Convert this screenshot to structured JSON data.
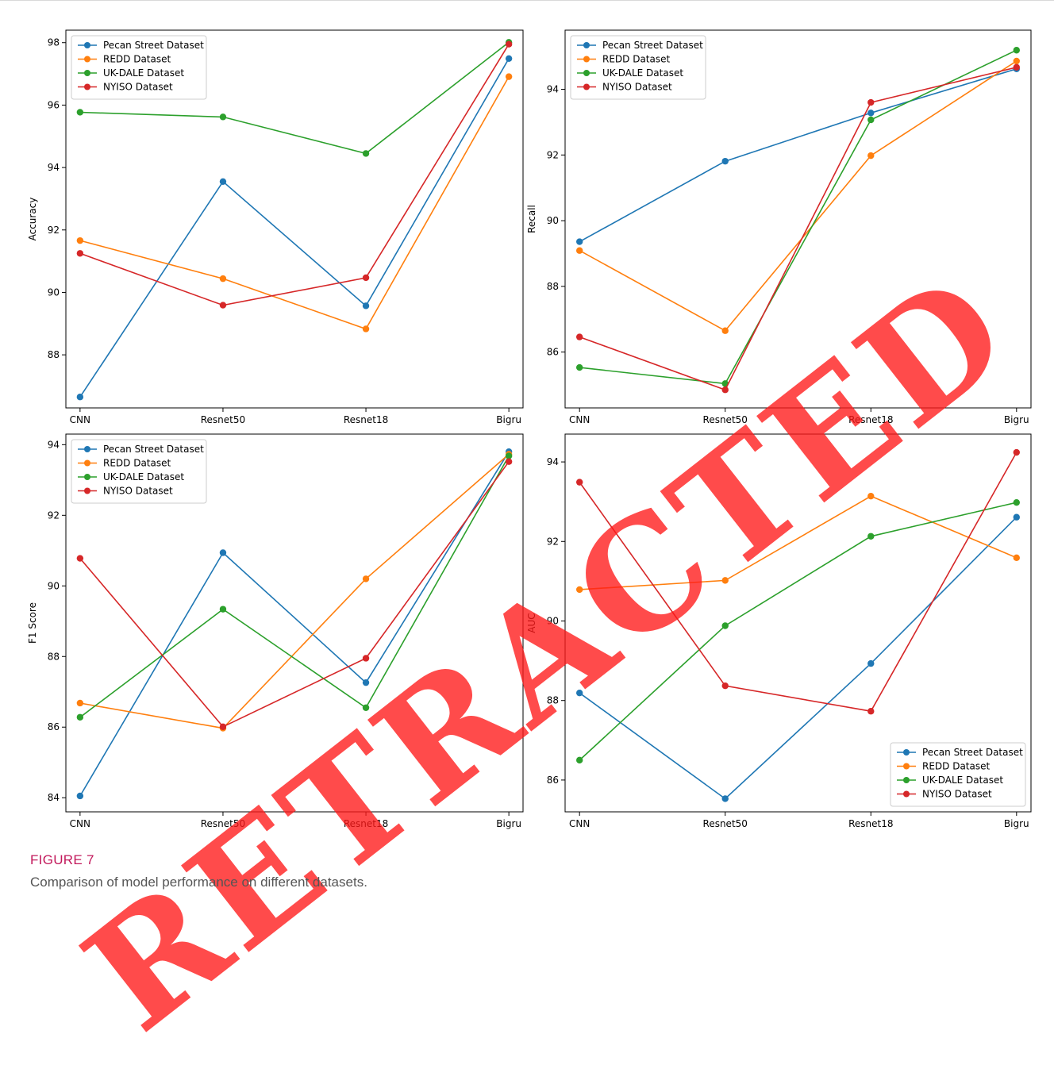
{
  "figure": {
    "label": "FIGURE 7",
    "caption": "Comparison of model performance on different datasets.",
    "watermark": "RETRACTED",
    "watermark_color": "#ff1818"
  },
  "colors": {
    "Pecan Street Dataset": "#1f77b4",
    "REDD Dataset": "#ff7f0e",
    "UK-DALE Dataset": "#2ca02c",
    "NYISO Dataset": "#d62728"
  },
  "chart_data": [
    {
      "type": "line",
      "ylabel": "Accuracy",
      "categories": [
        "CNN",
        "Resnet50",
        "Resnet18",
        "Bigru"
      ],
      "ylim": [
        86.3,
        98.4
      ],
      "yticks": [
        88,
        90,
        92,
        94,
        96,
        98
      ],
      "legend": "top-left",
      "grid": false,
      "series": [
        {
          "name": "Pecan Street Dataset",
          "values": [
            86.65,
            93.55,
            89.57,
            97.49
          ]
        },
        {
          "name": "REDD Dataset",
          "values": [
            91.66,
            90.44,
            88.83,
            96.91
          ]
        },
        {
          "name": "UK-DALE Dataset",
          "values": [
            95.77,
            95.62,
            94.45,
            98.01
          ]
        },
        {
          "name": "NYISO Dataset",
          "values": [
            91.25,
            89.59,
            90.47,
            97.95
          ]
        }
      ]
    },
    {
      "type": "line",
      "ylabel": "Recall",
      "categories": [
        "CNN",
        "Resnet50",
        "Resnet18",
        "Bigru"
      ],
      "ylim": [
        84.3,
        95.8
      ],
      "yticks": [
        86,
        88,
        90,
        92,
        94
      ],
      "legend": "top-left",
      "grid": false,
      "series": [
        {
          "name": "Pecan Street Dataset",
          "values": [
            89.36,
            91.81,
            93.28,
            94.62
          ]
        },
        {
          "name": "REDD Dataset",
          "values": [
            89.09,
            86.65,
            91.98,
            94.86
          ]
        },
        {
          "name": "UK-DALE Dataset",
          "values": [
            85.53,
            85.04,
            93.07,
            95.19
          ]
        },
        {
          "name": "NYISO Dataset",
          "values": [
            86.46,
            84.85,
            93.6,
            94.67
          ]
        }
      ]
    },
    {
      "type": "line",
      "ylabel": "F1 Score",
      "categories": [
        "CNN",
        "Resnet50",
        "Resnet18",
        "Bigru"
      ],
      "ylim": [
        83.6,
        94.3
      ],
      "yticks": [
        84,
        86,
        88,
        90,
        92,
        94
      ],
      "legend": "top-left",
      "grid": false,
      "series": [
        {
          "name": "Pecan Street Dataset",
          "values": [
            84.05,
            90.94,
            87.26,
            93.8
          ]
        },
        {
          "name": "REDD Dataset",
          "values": [
            86.68,
            85.97,
            90.2,
            93.73
          ]
        },
        {
          "name": "UK-DALE Dataset",
          "values": [
            86.28,
            89.34,
            86.55,
            93.68
          ]
        },
        {
          "name": "NYISO Dataset",
          "values": [
            90.78,
            86.01,
            87.95,
            93.52
          ]
        }
      ]
    },
    {
      "type": "line",
      "ylabel": "AUC",
      "categories": [
        "CNN",
        "Resnet50",
        "Resnet18",
        "Bigru"
      ],
      "ylim": [
        85.2,
        94.7
      ],
      "yticks": [
        86,
        88,
        90,
        92,
        94
      ],
      "legend": "bottom-right",
      "grid": false,
      "series": [
        {
          "name": "Pecan Street Dataset",
          "values": [
            88.19,
            85.53,
            88.93,
            92.61
          ]
        },
        {
          "name": "REDD Dataset",
          "values": [
            90.79,
            91.02,
            93.14,
            91.59
          ]
        },
        {
          "name": "UK-DALE Dataset",
          "values": [
            86.5,
            89.88,
            92.13,
            92.98
          ]
        },
        {
          "name": "NYISO Dataset",
          "values": [
            93.49,
            88.37,
            87.73,
            94.24
          ]
        }
      ]
    }
  ]
}
